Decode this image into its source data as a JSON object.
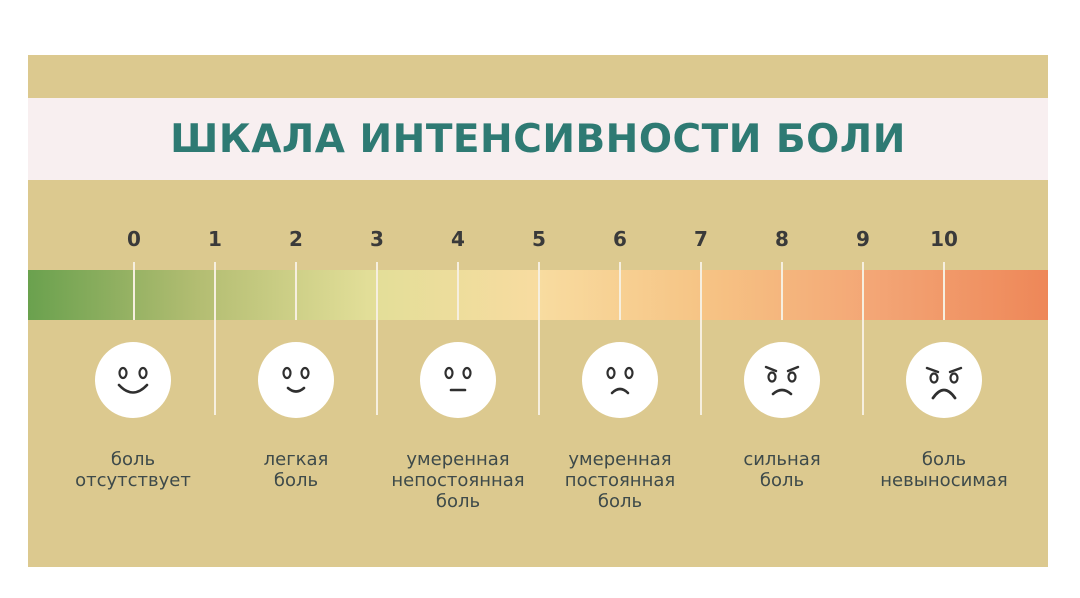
{
  "title": "ШКАЛА ИНТЕНСИВНОСТИ БОЛИ",
  "ticks": [
    "0",
    "1",
    "2",
    "3",
    "4",
    "5",
    "6",
    "7",
    "8",
    "9",
    "10"
  ],
  "levels": [
    {
      "label_lines": [
        "боль",
        "отсутствует"
      ],
      "face": "smiling-face-icon"
    },
    {
      "label_lines": [
        "легкая",
        "боль"
      ],
      "face": "slight-smile-face-icon"
    },
    {
      "label_lines": [
        "умеренная",
        "непостоянная",
        "боль"
      ],
      "face": "neutral-face-icon"
    },
    {
      "label_lines": [
        "умеренная",
        "постоянная",
        "боль"
      ],
      "face": "frowning-face-icon"
    },
    {
      "label_lines": [
        "сильная",
        "боль"
      ],
      "face": "worried-face-icon"
    },
    {
      "label_lines": [
        "боль",
        "невыносимая"
      ],
      "face": "anguished-face-icon"
    }
  ],
  "colors": {
    "title": "#2e7a73",
    "background": "#dcc98f",
    "title_band": "#f8eff0",
    "gradient": [
      "#6aa14e",
      "#b3bd72",
      "#e2de98",
      "#f8dca0",
      "#f6c384",
      "#f3a575",
      "#ee8758"
    ]
  }
}
